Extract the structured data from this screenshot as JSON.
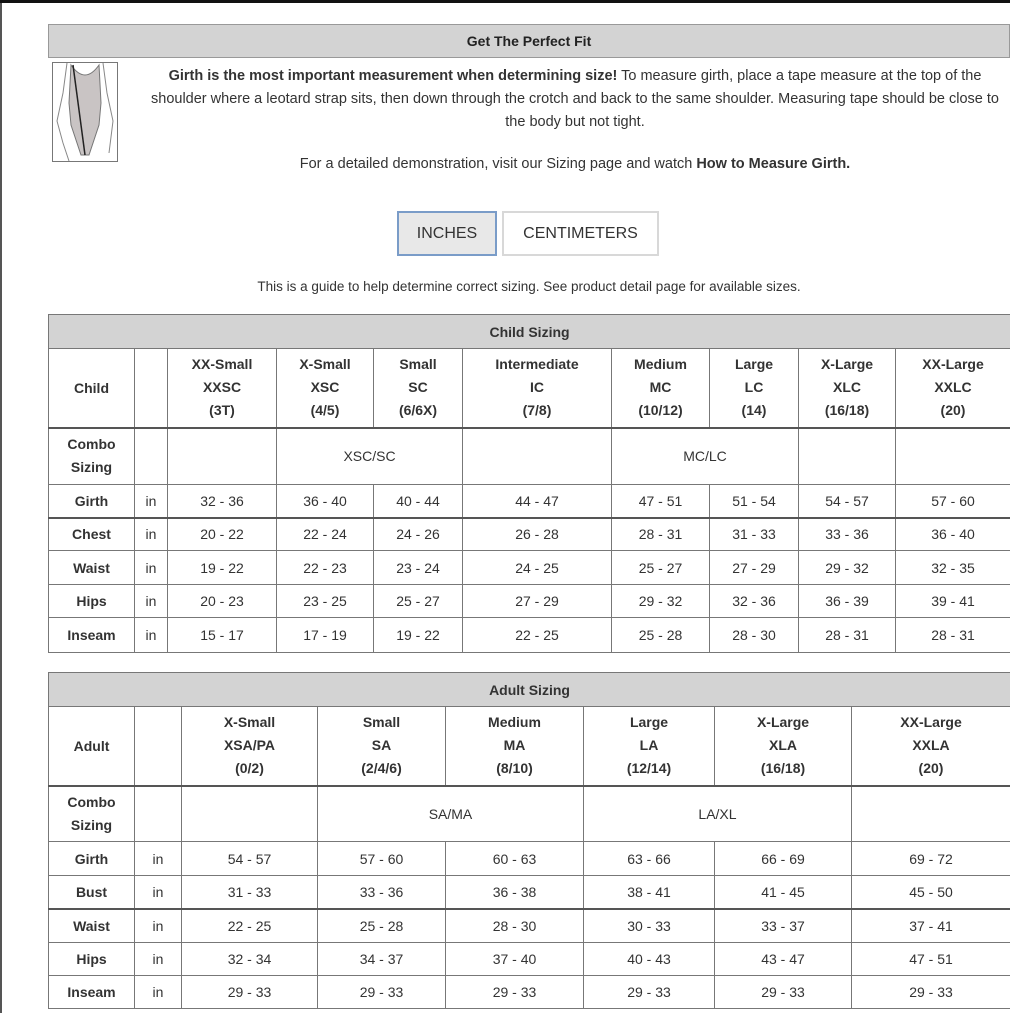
{
  "fit": {
    "title": "Get The Perfect Fit",
    "intro_bold": "Girth is the most important measurement when determining size!",
    "intro_rest": " To measure girth, place a tape measure at the top of the shoulder where a leotard strap sits, then down through the crotch and back to the same shoulder. Measuring tape should be close to the body but not tight.",
    "demo_text": "For a detailed demonstration, visit our Sizing page and watch ",
    "demo_link": "How to Measure Girth."
  },
  "units": {
    "inches": "INCHES",
    "centimeters": "CENTIMETERS",
    "selected": "INCHES"
  },
  "guide_text": "This is a guide to help determine correct sizing. See product detail page for available sizes.",
  "child": {
    "title": "Child Sizing",
    "corner": "Child",
    "sizes": [
      [
        "XX-Small",
        "XXSC",
        "(3T)"
      ],
      [
        "X-Small",
        "XSC",
        "(4/5)"
      ],
      [
        "Small",
        "SC",
        "(6/6X)"
      ],
      [
        "Intermediate",
        "IC",
        "(7/8)"
      ],
      [
        "Medium",
        "MC",
        "(10/12)"
      ],
      [
        "Large",
        "LC",
        "(14)"
      ],
      [
        "X-Large",
        "XLC",
        "(16/18)"
      ],
      [
        "XX-Large",
        "XXLC",
        "(20)"
      ]
    ],
    "combo_label": [
      "Combo",
      "Sizing"
    ],
    "combo": [
      {
        "text": "",
        "span": 1
      },
      {
        "text": "XSC/SC",
        "span": 2
      },
      {
        "text": "",
        "span": 1
      },
      {
        "text": "MC/LC",
        "span": 2
      },
      {
        "text": "",
        "span": 1
      },
      {
        "text": "",
        "span": 1
      }
    ],
    "rows": [
      {
        "label": "Girth",
        "unit": "in",
        "values": [
          "32 - 36",
          "36 - 40",
          "40 - 44",
          "44 - 47",
          "47 - 51",
          "51 - 54",
          "54 - 57",
          "57 - 60"
        ]
      },
      {
        "label": "Chest",
        "unit": "in",
        "values": [
          "20 - 22",
          "22 - 24",
          "24 - 26",
          "26 - 28",
          "28 - 31",
          "31 - 33",
          "33 - 36",
          "36 - 40"
        ]
      },
      {
        "label": "Waist",
        "unit": "in",
        "values": [
          "19 - 22",
          "22 - 23",
          "23 - 24",
          "24 - 25",
          "25 - 27",
          "27 - 29",
          "29 - 32",
          "32 - 35"
        ]
      },
      {
        "label": "Hips",
        "unit": "in",
        "values": [
          "20 - 23",
          "23 - 25",
          "25 - 27",
          "27 - 29",
          "29 - 32",
          "32 - 36",
          "36 - 39",
          "39 - 41"
        ]
      },
      {
        "label": "Inseam",
        "unit": "in",
        "values": [
          "15 - 17",
          "17 - 19",
          "19 - 22",
          "22 - 25",
          "25 - 28",
          "28 - 30",
          "28 - 31",
          "28 - 31"
        ]
      }
    ]
  },
  "adult": {
    "title": "Adult Sizing",
    "corner": "Adult",
    "sizes": [
      [
        "X-Small",
        "XSA/PA",
        "(0/2)"
      ],
      [
        "Small",
        "SA",
        "(2/4/6)"
      ],
      [
        "Medium",
        "MA",
        "(8/10)"
      ],
      [
        "Large",
        "LA",
        "(12/14)"
      ],
      [
        "X-Large",
        "XLA",
        "(16/18)"
      ],
      [
        "XX-Large",
        "XXLA",
        "(20)"
      ]
    ],
    "combo_label": [
      "Combo",
      "Sizing"
    ],
    "combo": [
      {
        "text": "",
        "span": 1
      },
      {
        "text": "SA/MA",
        "span": 2
      },
      {
        "text": "LA/XL",
        "span": 2
      },
      {
        "text": "",
        "span": 1
      }
    ],
    "rows": [
      {
        "label": "Girth",
        "unit": "in",
        "values": [
          "54 - 57",
          "57 - 60",
          "60 - 63",
          "63 - 66",
          "66 - 69",
          "69 - 72"
        ]
      },
      {
        "label": "Bust",
        "unit": "in",
        "values": [
          "31 - 33",
          "33 - 36",
          "36 - 38",
          "38 - 41",
          "41 - 45",
          "45 - 50"
        ]
      },
      {
        "label": "Waist",
        "unit": "in",
        "values": [
          "22 - 25",
          "25 - 28",
          "28 - 30",
          "30 - 33",
          "33 - 37",
          "37 - 41"
        ]
      },
      {
        "label": "Hips",
        "unit": "in",
        "values": [
          "32 - 34",
          "34 - 37",
          "37 - 40",
          "40 - 43",
          "43 - 47",
          "47 - 51"
        ]
      },
      {
        "label": "Inseam",
        "unit": "in",
        "values": [
          "29 - 33",
          "29 - 33",
          "29 - 33",
          "29 - 33",
          "29 - 33",
          "29 - 33"
        ]
      }
    ]
  }
}
